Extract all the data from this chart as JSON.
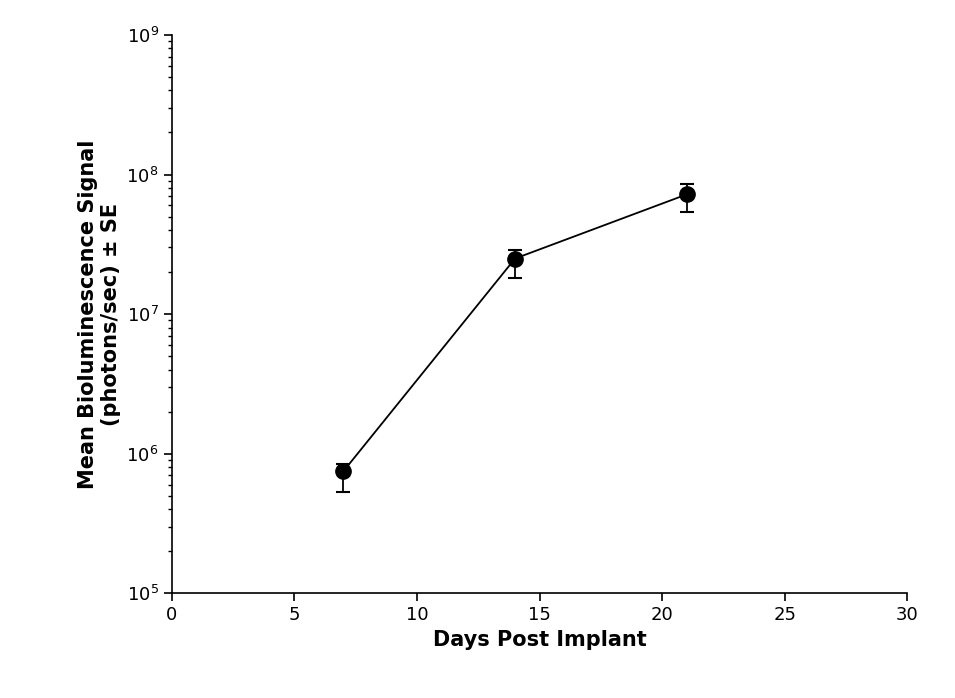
{
  "x": [
    7,
    14,
    21
  ],
  "y": [
    750000,
    25000000,
    72000000
  ],
  "yerr_upper": [
    100000,
    4000000,
    13000000
  ],
  "yerr_lower": [
    220000,
    7000000,
    18000000
  ],
  "xlabel": "Days Post Implant",
  "ylabel": "Mean Bioluminescence Signal\n(photons/sec) ± SE",
  "xlim": [
    0,
    30
  ],
  "ylim": [
    100000.0,
    1000000000.0
  ],
  "xticks": [
    0,
    5,
    10,
    15,
    20,
    25,
    30
  ],
  "yticks": [
    100000.0,
    1000000.0,
    10000000.0,
    100000000.0,
    1000000000.0
  ],
  "marker_color": "#000000",
  "line_color": "#000000",
  "marker_size": 11,
  "line_width": 1.3,
  "background_color": "#ffffff",
  "label_fontsize": 15,
  "tick_fontsize": 13
}
